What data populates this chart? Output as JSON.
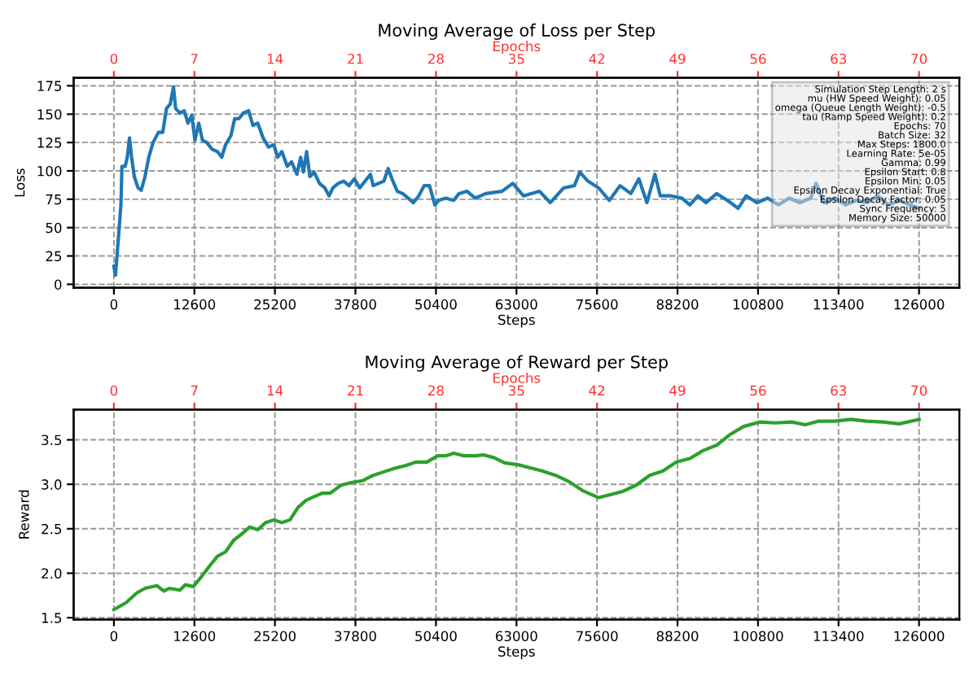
{
  "chart_data": [
    {
      "type": "line",
      "title": "Moving Average of Loss per Step",
      "xlabel": "Steps",
      "ylabel": "Loss",
      "x2label": "Epochs",
      "xlim": [
        -6300,
        132300
      ],
      "xticks": [
        0,
        12600,
        25200,
        37800,
        50400,
        63000,
        75600,
        88200,
        100800,
        113400,
        126000
      ],
      "x2lim": [
        -3.5,
        73.5
      ],
      "x2ticks": [
        0,
        7,
        14,
        21,
        28,
        35,
        42,
        49,
        56,
        63,
        70
      ],
      "ylim": [
        -3,
        182
      ],
      "yticks": [
        0,
        25,
        50,
        75,
        100,
        125,
        150,
        175
      ],
      "grid": true,
      "line_style": "solid",
      "annotations": [
        "Simulation Step Length: 2 s\nmu (HW Speed Weight): 0.05\nomega (Queue Length Weight): -0.5\ntau (Ramp Speed Weight): 0.2\nEpochs: 70\nBatch Size: 32\nMax Steps: 1800.0\nLearning Rate: 5e-05\nGamma: 0.99\nEpsilon Start: 0.8\nEpsilon Min: 0.05\nEpsilon Decay Exponential: True\nEpsilon Decay Factor: 0.05\nSync Frequency: 5\nMemory Size: 50000"
      ],
      "series": [
        {
          "color": "#1f77b4",
          "x": [
            0,
            250,
            1100,
            1260,
            1760,
            2100,
            2440,
            2770,
            3190,
            3780,
            4280,
            4870,
            5460,
            6130,
            6970,
            7640,
            8230,
            8820,
            9320,
            9660,
            10330,
            11000,
            11590,
            12180,
            12680,
            13270,
            13860,
            14530,
            15370,
            16210,
            16880,
            17470,
            18310,
            18900,
            19570,
            20240,
            21080,
            21760,
            22510,
            23350,
            24190,
            25030,
            25620,
            26290,
            27130,
            27800,
            28640,
            29230,
            29650,
            30160,
            30660,
            31330,
            32170,
            33010,
            33680,
            34270,
            35110,
            35950,
            36790,
            37630,
            38470,
            39310,
            40150,
            40570,
            41410,
            42250,
            42920,
            43510,
            44350,
            45190,
            46030,
            46870,
            47710,
            48550,
            49390,
            50230,
            50820,
            51910,
            53170,
            54010,
            55270,
            56530,
            58210,
            60730,
            62410,
            64090,
            66610,
            68290,
            70390,
            72070,
            72910,
            74170,
            75850,
            77530,
            79210,
            80890,
            82150,
            83410,
            84670,
            85510,
            87190,
            88870,
            90130,
            91390,
            92650,
            94330,
            96010,
            97690,
            98950,
            100630,
            102310,
            103990,
            105670,
            107350,
            109030,
            109870,
            111130,
            112810,
            114490,
            116170,
            117850,
            119530,
            121210,
            122890,
            124570,
            126000
          ],
          "values": [
            16,
            8,
            70,
            104,
            104,
            112,
            129,
            112,
            95,
            85,
            83,
            95,
            112,
            125,
            134,
            134,
            155,
            159,
            174,
            155,
            151,
            153,
            142,
            149,
            127,
            142,
            127,
            125,
            119,
            117,
            112,
            123,
            131,
            146,
            146,
            151,
            153,
            140,
            142,
            129,
            121,
            123,
            112,
            117,
            104,
            108,
            97,
            112,
            99,
            117,
            95,
            99,
            89,
            85,
            78,
            85,
            89,
            91,
            87,
            93,
            85,
            91,
            97,
            87,
            89,
            91,
            102,
            93,
            82,
            80,
            76,
            72,
            78,
            87,
            87,
            70,
            74,
            76,
            74,
            80,
            82,
            76,
            80,
            82,
            89,
            78,
            82,
            72,
            85,
            87,
            99,
            91,
            85,
            74,
            87,
            80,
            93,
            72,
            97,
            78,
            78,
            76,
            70,
            78,
            72,
            80,
            74,
            67,
            78,
            72,
            76,
            70,
            76,
            72,
            76,
            89,
            72,
            76,
            70,
            74,
            72,
            78,
            70,
            74,
            70,
            67
          ]
        }
      ]
    },
    {
      "type": "line",
      "title": "Moving Average of Reward per Step",
      "xlabel": "Steps",
      "ylabel": "Reward",
      "x2label": "Epochs",
      "xlim": [
        -6300,
        132300
      ],
      "xticks": [
        0,
        12600,
        25200,
        37800,
        50400,
        63000,
        75600,
        88200,
        100800,
        113400,
        126000
      ],
      "x2lim": [
        -3.5,
        73.5
      ],
      "x2ticks": [
        0,
        7,
        14,
        21,
        28,
        35,
        42,
        49,
        56,
        63,
        70
      ],
      "ylim": [
        1.48,
        3.84
      ],
      "yticks": [
        1.5,
        {
          "value": 2,
          "label": "2.0"
        },
        2.5,
        {
          "value": 3,
          "label": "3.0"
        },
        3.5
      ],
      "grid": true,
      "line_style": "solid",
      "series": [
        {
          "color": "#2ca02c",
          "x": [
            0,
            1930,
            3610,
            4870,
            6720,
            7810,
            8650,
            10330,
            11170,
            12430,
            13690,
            14950,
            16210,
            17470,
            18730,
            19990,
            21250,
            22510,
            23770,
            25030,
            26290,
            27550,
            28810,
            30070,
            31330,
            32590,
            33850,
            35530,
            37210,
            38890,
            40570,
            42250,
            43930,
            45610,
            47290,
            48970,
            50650,
            51910,
            53170,
            54850,
            56530,
            57790,
            59470,
            61150,
            63250,
            64930,
            67030,
            69130,
            71230,
            73330,
            75850,
            77530,
            79630,
            81730,
            83830,
            85930,
            88030,
            90130,
            92230,
            94330,
            96430,
            98530,
            101050,
            103570,
            106090,
            108190,
            110290,
            112810,
            115330,
            117850,
            120370,
            122890,
            126000
          ],
          "values": [
            1.59,
            1.67,
            1.78,
            1.83,
            1.86,
            1.8,
            1.83,
            1.81,
            1.87,
            1.85,
            1.96,
            2.08,
            2.19,
            2.24,
            2.37,
            2.44,
            2.52,
            2.49,
            2.57,
            2.6,
            2.57,
            2.6,
            2.74,
            2.82,
            2.86,
            2.9,
            2.9,
            2.99,
            3.02,
            3.04,
            3.1,
            3.14,
            3.18,
            3.21,
            3.25,
            3.25,
            3.32,
            3.32,
            3.35,
            3.32,
            3.32,
            3.33,
            3.3,
            3.24,
            3.22,
            3.19,
            3.15,
            3.1,
            3.03,
            2.93,
            2.85,
            2.88,
            2.92,
            2.99,
            3.1,
            3.15,
            3.25,
            3.29,
            3.38,
            3.44,
            3.56,
            3.65,
            3.7,
            3.69,
            3.7,
            3.67,
            3.71,
            3.71,
            3.73,
            3.71,
            3.7,
            3.68,
            3.73
          ]
        }
      ]
    }
  ]
}
